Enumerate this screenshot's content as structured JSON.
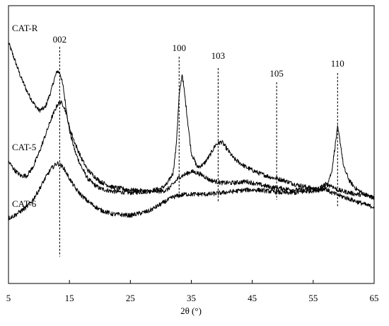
{
  "chart_data": {
    "type": "line",
    "xlabel": "2θ (°)",
    "ylabel": "",
    "xlim": [
      5,
      65
    ],
    "xticks": [
      5,
      15,
      25,
      35,
      45,
      55,
      65
    ],
    "xtick_labels": [
      "5",
      "15",
      "25",
      "35",
      "45",
      "55",
      "65"
    ],
    "grid": false,
    "legend": "none",
    "yscale": "arbitrary",
    "series": [
      {
        "name": "CAT-R",
        "x": [
          5,
          6,
          7,
          8,
          9,
          10,
          11,
          12,
          12.5,
          13,
          13.5,
          14,
          14.5,
          15,
          16,
          17,
          18,
          19,
          20,
          22,
          25,
          28,
          30,
          31,
          32,
          32.5,
          33,
          33.5,
          34,
          35,
          36,
          37,
          38,
          39,
          40,
          41,
          42,
          44,
          46,
          48,
          50,
          52,
          54,
          55,
          56,
          57,
          58,
          58.5,
          59,
          59.5,
          60,
          61,
          62,
          63,
          64,
          65
        ],
        "y": [
          8.5,
          7.9,
          7.3,
          6.8,
          6.4,
          6.1,
          6.2,
          6.8,
          7.2,
          7.5,
          7.4,
          6.9,
          6.1,
          5.4,
          4.6,
          4.1,
          3.7,
          3.5,
          3.35,
          3.25,
          3.2,
          3.25,
          3.35,
          3.5,
          3.9,
          4.8,
          6.6,
          7.4,
          6.5,
          4.6,
          4.1,
          4.2,
          4.5,
          4.9,
          5.0,
          4.7,
          4.4,
          4.1,
          3.9,
          3.75,
          3.65,
          3.5,
          3.4,
          3.35,
          3.3,
          3.4,
          3.9,
          4.7,
          5.5,
          4.9,
          4.1,
          3.6,
          3.35,
          3.2,
          3.1,
          3.0
        ]
      },
      {
        "name": "CAT-5",
        "x": [
          5,
          6,
          7,
          8,
          9,
          10,
          11,
          12,
          13,
          13.5,
          14,
          14.5,
          15,
          16,
          17,
          18,
          19,
          20,
          22,
          25,
          28,
          30,
          31,
          32,
          33,
          34,
          35,
          36,
          37,
          38,
          40,
          42,
          44,
          46,
          48,
          50,
          52,
          54,
          56,
          57,
          58,
          59,
          60,
          62,
          64,
          65
        ],
        "y": [
          4.3,
          4.0,
          3.8,
          3.8,
          4.1,
          4.6,
          5.2,
          5.8,
          6.3,
          6.4,
          6.3,
          6.0,
          5.5,
          4.9,
          4.4,
          4.0,
          3.8,
          3.6,
          3.4,
          3.3,
          3.25,
          3.25,
          3.3,
          3.5,
          3.75,
          3.85,
          3.95,
          3.9,
          3.8,
          3.65,
          3.55,
          3.55,
          3.6,
          3.5,
          3.4,
          3.35,
          3.3,
          3.3,
          3.35,
          3.5,
          3.45,
          3.3,
          3.25,
          3.15,
          3.1,
          3.05
        ]
      },
      {
        "name": "CAT-6",
        "x": [
          5,
          6,
          7,
          8,
          9,
          10,
          11,
          12,
          13,
          14,
          15,
          16,
          17,
          18,
          19,
          20,
          22,
          25,
          28,
          30,
          32,
          34,
          36,
          38,
          40,
          42,
          44,
          46,
          48,
          50,
          52,
          54,
          56,
          57,
          58,
          60,
          62,
          64,
          65
        ],
        "y": [
          2.3,
          2.4,
          2.55,
          2.7,
          2.95,
          3.3,
          3.7,
          4.05,
          4.25,
          4.1,
          3.7,
          3.35,
          3.1,
          2.9,
          2.75,
          2.6,
          2.45,
          2.4,
          2.55,
          2.8,
          3.05,
          3.15,
          3.15,
          3.15,
          3.2,
          3.25,
          3.3,
          3.3,
          3.25,
          3.2,
          3.2,
          3.25,
          3.3,
          3.35,
          3.2,
          3.05,
          2.9,
          2.75,
          2.7
        ]
      }
    ],
    "annotations": [
      {
        "label": "002",
        "x": 13.4
      },
      {
        "label": "100",
        "x": 33.0
      },
      {
        "label": "103",
        "x": 39.4
      },
      {
        "label": "105",
        "x": 49.0
      },
      {
        "label": "110",
        "x": 59.0
      }
    ]
  }
}
